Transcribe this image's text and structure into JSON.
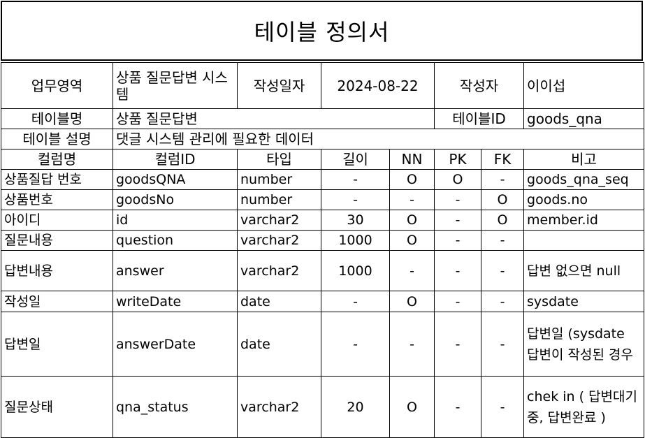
{
  "title": "테이블 정의서",
  "meta": {
    "work_area_label": "업무영역",
    "work_area_value": "상품 질문답변 시스템",
    "date_label": "작성일자",
    "date_value": "2024-08-22",
    "author_label": "작성자",
    "author_value": "이이섭",
    "table_name_label": "테이블명",
    "table_name_value": "상품 질문답변",
    "table_id_label": "테이블ID",
    "table_id_value": "goods_qna",
    "desc_label": "테이블 설명",
    "desc_value": "댓글 시스템 관리에 필요한 데이터"
  },
  "columns": [
    "컬럼명",
    "컬럼ID",
    "타입",
    "길이",
    "NN",
    "PK",
    "FK",
    "비고"
  ],
  "rows": [
    {
      "name": "상품질답 번호",
      "id": "goodsQNA",
      "type": "number",
      "len": "-",
      "nn": "O",
      "pk": "O",
      "fk": "-",
      "note": "goods_qna_seq"
    },
    {
      "name": "상품번호",
      "id": "goodsNo",
      "type": "number",
      "len": "-",
      "nn": "-",
      "pk": "-",
      "fk": "O",
      "note": "goods.no"
    },
    {
      "name": "아이디",
      "id": "id",
      "type": "varchar2",
      "len": "30",
      "nn": "O",
      "pk": "-",
      "fk": "O",
      "note": "member.id"
    },
    {
      "name": "질문내용",
      "id": "question",
      "type": "varchar2",
      "len": "1000",
      "nn": "O",
      "pk": "-",
      "fk": "-",
      "note": ""
    },
    {
      "name": "답변내용",
      "id": "answer",
      "type": "varchar2",
      "len": "1000",
      "nn": "-",
      "pk": "-",
      "fk": "-",
      "note": "답변 없으면 null"
    },
    {
      "name": "작성일",
      "id": "writeDate",
      "type": "date",
      "len": "-",
      "nn": "O",
      "pk": "-",
      "fk": "-",
      "note": "sysdate"
    },
    {
      "name": "답변일",
      "id": "answerDate",
      "type": "date",
      "len": "-",
      "nn": "-",
      "pk": "-",
      "fk": "-",
      "note": "답변일 (sysdate 답변이 작성된 경우"
    },
    {
      "name": "질문상태",
      "id": "qna_status",
      "type": "varchar2",
      "len": "20",
      "nn": "O",
      "pk": "-",
      "fk": "-",
      "note": "chek in ( 답변대기중, 답변완료 )"
    }
  ]
}
